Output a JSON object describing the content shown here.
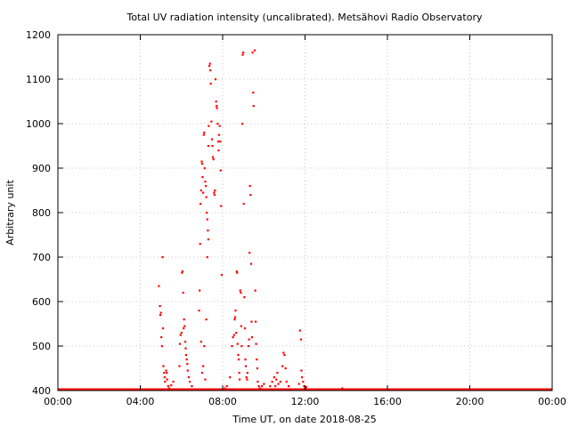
{
  "chart_data": {
    "type": "scatter",
    "title": "Total UV radiation intensity (uncalibrated). Metsähovi Radio Observatory",
    "xlabel": "Time UT, on date 2018-08-25",
    "ylabel": "Arbitrary unit",
    "xlim": [
      0,
      24
    ],
    "ylim": [
      400,
      1200
    ],
    "x_ticks": [
      {
        "value": 0,
        "label": "00:00"
      },
      {
        "value": 4,
        "label": "04:00"
      },
      {
        "value": 8,
        "label": "08:00"
      },
      {
        "value": 12,
        "label": "12:00"
      },
      {
        "value": 16,
        "label": "16:00"
      },
      {
        "value": 20,
        "label": "20:00"
      },
      {
        "value": 24,
        "label": "00:00"
      }
    ],
    "y_ticks": [
      400,
      500,
      600,
      700,
      800,
      900,
      1000,
      1100,
      1200
    ],
    "grid": true,
    "point_color": "#ff0000",
    "baseline": {
      "value": 400,
      "from": 0,
      "to": 24
    },
    "series": [
      {
        "points": [
          [
            4.9,
            635
          ],
          [
            4.95,
            590
          ],
          [
            4.97,
            570
          ],
          [
            5.0,
            575
          ],
          [
            5.02,
            520
          ],
          [
            5.05,
            500
          ],
          [
            5.08,
            700
          ],
          [
            5.1,
            540
          ],
          [
            5.12,
            455
          ],
          [
            5.15,
            440
          ],
          [
            5.18,
            430
          ],
          [
            5.2,
            420
          ],
          [
            5.25,
            445
          ],
          [
            5.28,
            440
          ],
          [
            5.3,
            425
          ],
          [
            5.35,
            410
          ],
          [
            5.4,
            405
          ],
          [
            5.5,
            412
          ],
          [
            5.6,
            420
          ],
          [
            5.9,
            455
          ],
          [
            5.92,
            505
          ],
          [
            5.95,
            525
          ],
          [
            6.0,
            530
          ],
          [
            6.02,
            665
          ],
          [
            6.05,
            668
          ],
          [
            6.08,
            620
          ],
          [
            6.1,
            540
          ],
          [
            6.12,
            560
          ],
          [
            6.15,
            545
          ],
          [
            6.18,
            510
          ],
          [
            6.2,
            495
          ],
          [
            6.22,
            480
          ],
          [
            6.25,
            470
          ],
          [
            6.28,
            460
          ],
          [
            6.3,
            445
          ],
          [
            6.35,
            430
          ],
          [
            6.4,
            420
          ],
          [
            6.5,
            410
          ],
          [
            6.85,
            580
          ],
          [
            6.88,
            625
          ],
          [
            6.9,
            730
          ],
          [
            6.92,
            820
          ],
          [
            6.95,
            850
          ],
          [
            6.98,
            915
          ],
          [
            7.0,
            910
          ],
          [
            7.02,
            880
          ],
          [
            7.05,
            845
          ],
          [
            7.08,
            975
          ],
          [
            7.1,
            980
          ],
          [
            7.12,
            900
          ],
          [
            7.15,
            870
          ],
          [
            7.18,
            860
          ],
          [
            7.2,
            835
          ],
          [
            7.22,
            800
          ],
          [
            7.25,
            785
          ],
          [
            7.28,
            760
          ],
          [
            7.3,
            950
          ],
          [
            7.32,
            995
          ],
          [
            7.35,
            1130
          ],
          [
            7.38,
            1135
          ],
          [
            7.4,
            1120
          ],
          [
            7.42,
            1090
          ],
          [
            7.45,
            1005
          ],
          [
            7.48,
            965
          ],
          [
            7.5,
            950
          ],
          [
            7.52,
            925
          ],
          [
            7.55,
            920
          ],
          [
            7.58,
            845
          ],
          [
            7.6,
            840
          ],
          [
            7.62,
            850
          ],
          [
            7.65,
            1100
          ],
          [
            7.68,
            1050
          ],
          [
            7.7,
            1040
          ],
          [
            7.72,
            1035
          ],
          [
            7.75,
            1000
          ],
          [
            7.78,
            960
          ],
          [
            7.8,
            940
          ],
          [
            7.82,
            975
          ],
          [
            7.85,
            995
          ],
          [
            7.88,
            960
          ],
          [
            7.9,
            895
          ],
          [
            7.92,
            815
          ],
          [
            7.95,
            660
          ],
          [
            6.95,
            510
          ],
          [
            7.1,
            500
          ],
          [
            7.2,
            560
          ],
          [
            7.25,
            700
          ],
          [
            7.3,
            740
          ],
          [
            7.05,
            455
          ],
          [
            7.0,
            440
          ],
          [
            7.15,
            425
          ],
          [
            8.1,
            405
          ],
          [
            8.2,
            410
          ],
          [
            8.35,
            430
          ],
          [
            8.45,
            500
          ],
          [
            8.5,
            520
          ],
          [
            8.55,
            525
          ],
          [
            8.58,
            560
          ],
          [
            8.6,
            565
          ],
          [
            8.62,
            580
          ],
          [
            8.65,
            530
          ],
          [
            8.68,
            668
          ],
          [
            8.7,
            665
          ],
          [
            8.72,
            505
          ],
          [
            8.75,
            480
          ],
          [
            8.78,
            470
          ],
          [
            8.8,
            440
          ],
          [
            8.82,
            425
          ],
          [
            8.85,
            625
          ],
          [
            8.88,
            620
          ],
          [
            8.9,
            545
          ],
          [
            8.92,
            500
          ],
          [
            8.95,
            1000
          ],
          [
            8.97,
            1155
          ],
          [
            9.0,
            1160
          ],
          [
            9.02,
            820
          ],
          [
            9.05,
            610
          ],
          [
            9.08,
            540
          ],
          [
            9.1,
            470
          ],
          [
            9.12,
            455
          ],
          [
            9.15,
            430
          ],
          [
            9.18,
            425
          ],
          [
            9.2,
            440
          ],
          [
            9.25,
            500
          ],
          [
            9.28,
            515
          ],
          [
            9.3,
            710
          ],
          [
            9.32,
            860
          ],
          [
            9.35,
            840
          ],
          [
            9.38,
            685
          ],
          [
            9.4,
            555
          ],
          [
            9.42,
            520
          ],
          [
            9.45,
            1160
          ],
          [
            9.48,
            1070
          ],
          [
            9.5,
            1040
          ],
          [
            9.55,
            1165
          ],
          [
            9.58,
            625
          ],
          [
            9.6,
            555
          ],
          [
            9.62,
            505
          ],
          [
            9.65,
            470
          ],
          [
            9.68,
            450
          ],
          [
            9.7,
            420
          ],
          [
            9.75,
            410
          ],
          [
            9.8,
            405
          ],
          [
            9.9,
            410
          ],
          [
            10.0,
            415
          ],
          [
            10.3,
            410
          ],
          [
            10.4,
            420
          ],
          [
            10.5,
            430
          ],
          [
            10.55,
            410
          ],
          [
            10.6,
            425
          ],
          [
            10.65,
            440
          ],
          [
            10.7,
            415
          ],
          [
            10.8,
            420
          ],
          [
            10.9,
            455
          ],
          [
            10.95,
            485
          ],
          [
            11.0,
            480
          ],
          [
            11.05,
            450
          ],
          [
            11.1,
            420
          ],
          [
            11.2,
            410
          ],
          [
            11.7,
            415
          ],
          [
            11.75,
            535
          ],
          [
            11.8,
            515
          ],
          [
            11.82,
            445
          ],
          [
            11.85,
            430
          ],
          [
            11.9,
            420
          ],
          [
            11.95,
            410
          ],
          [
            12.0,
            405
          ],
          [
            12.05,
            408
          ],
          [
            13.8,
            405
          ]
        ]
      }
    ]
  }
}
